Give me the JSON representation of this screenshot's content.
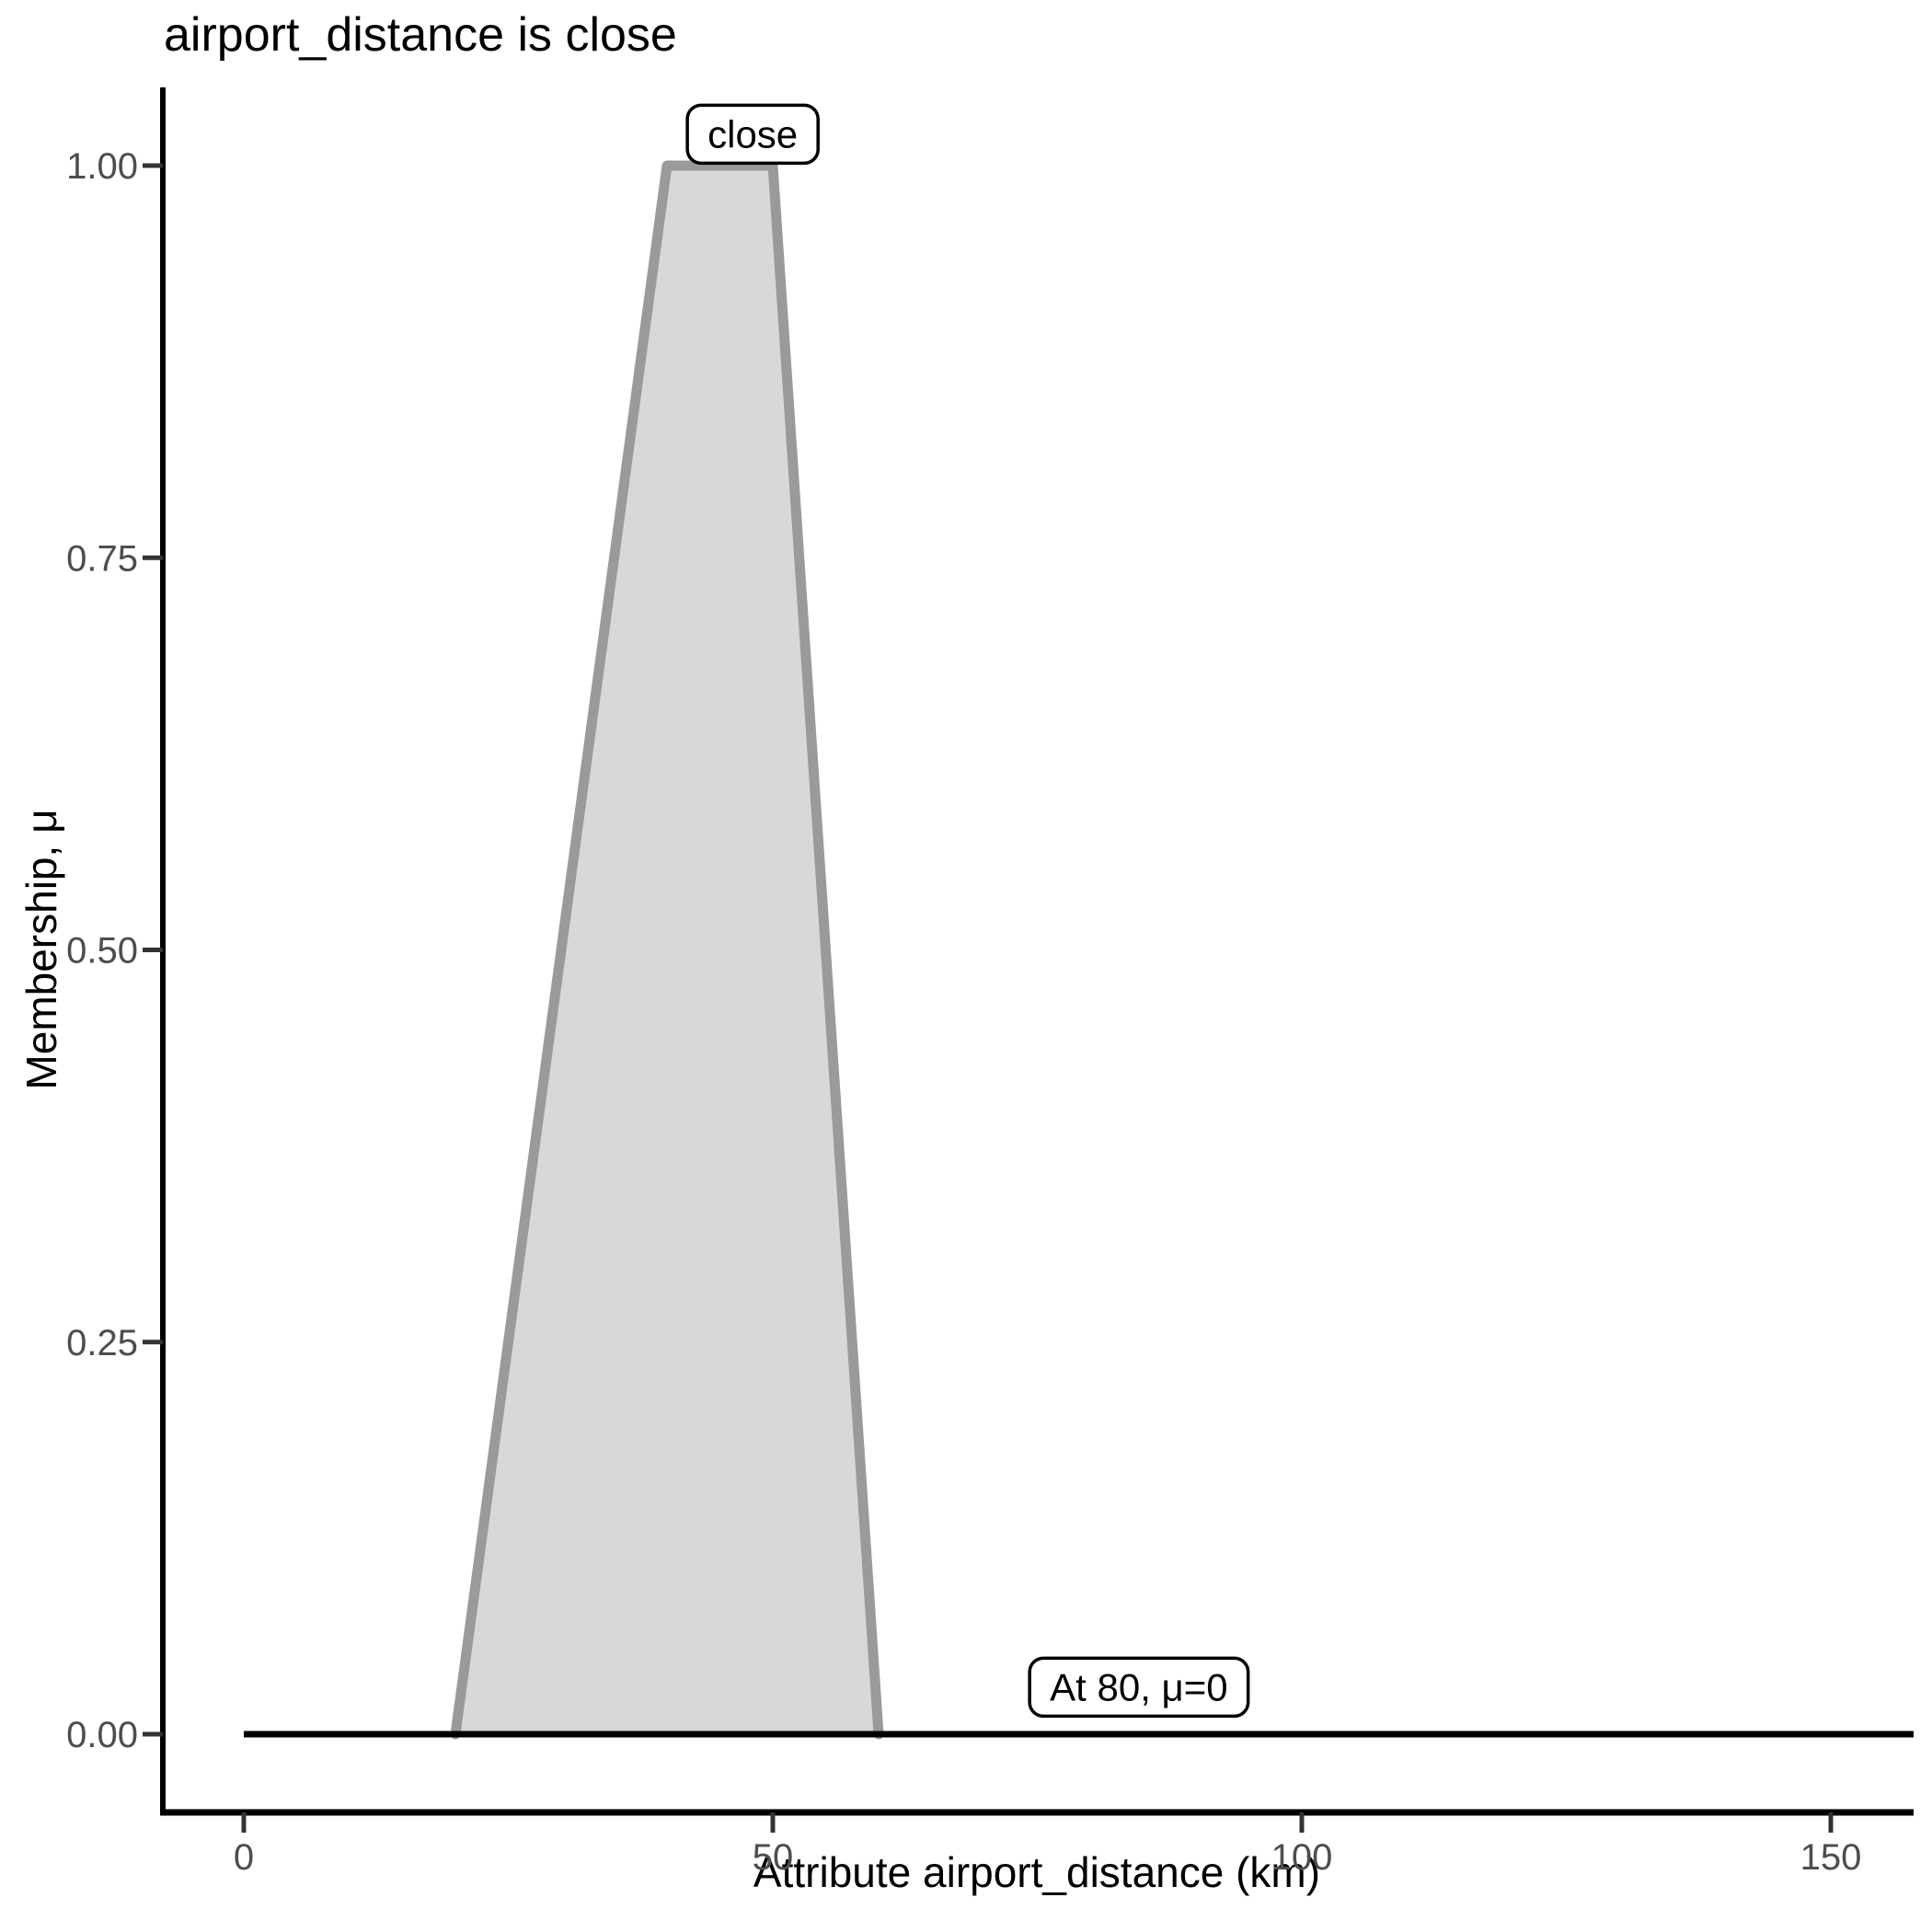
{
  "title": "airport_distance is close",
  "x_axis": {
    "label": "Attribute airport_distance (km)",
    "range": [
      0,
      150
    ],
    "ticks": {
      "values": [
        0,
        50,
        100,
        150
      ],
      "labels": [
        "0",
        "50",
        "100",
        "150"
      ]
    }
  },
  "y_axis": {
    "label": "Membership, μ",
    "range": [
      0,
      1
    ],
    "ticks": {
      "values": [
        0,
        0.25,
        0.5,
        0.75,
        1
      ],
      "labels": [
        "0.00",
        "0.25",
        "0.50",
        "0.75",
        "1.00"
      ]
    }
  },
  "chart_data": {
    "type": "area",
    "title": "airport_distance is close",
    "xlabel": "Attribute airport_distance (km)",
    "ylabel": "Membership, μ",
    "xlim": [
      0,
      150
    ],
    "ylim": [
      0,
      1
    ],
    "grid": false,
    "legend": false,
    "fuzzy_set": {
      "name": "close",
      "shape": "trapezoid",
      "points_x": [
        20,
        40,
        50,
        60
      ],
      "points_mu": [
        0,
        1,
        1,
        0
      ]
    },
    "zero_line": {
      "mu": 0,
      "x_from": 0
    },
    "annotations": [
      {
        "text": "close",
        "x": 48.1,
        "mu": 1.02
      },
      {
        "text": "At 80, μ=0",
        "x": 84.6,
        "mu": 0.03
      }
    ],
    "colors": {
      "set_fill": "#d8d8d8",
      "set_stroke": "#9a9a9a",
      "zero_line": "#000000",
      "axis_line": "#000000",
      "tick_mark": "#333333",
      "tick_label": "#4d4d4d",
      "annotation_box_fill": "#ffffff",
      "annotation_box_stroke": "#000000"
    }
  }
}
